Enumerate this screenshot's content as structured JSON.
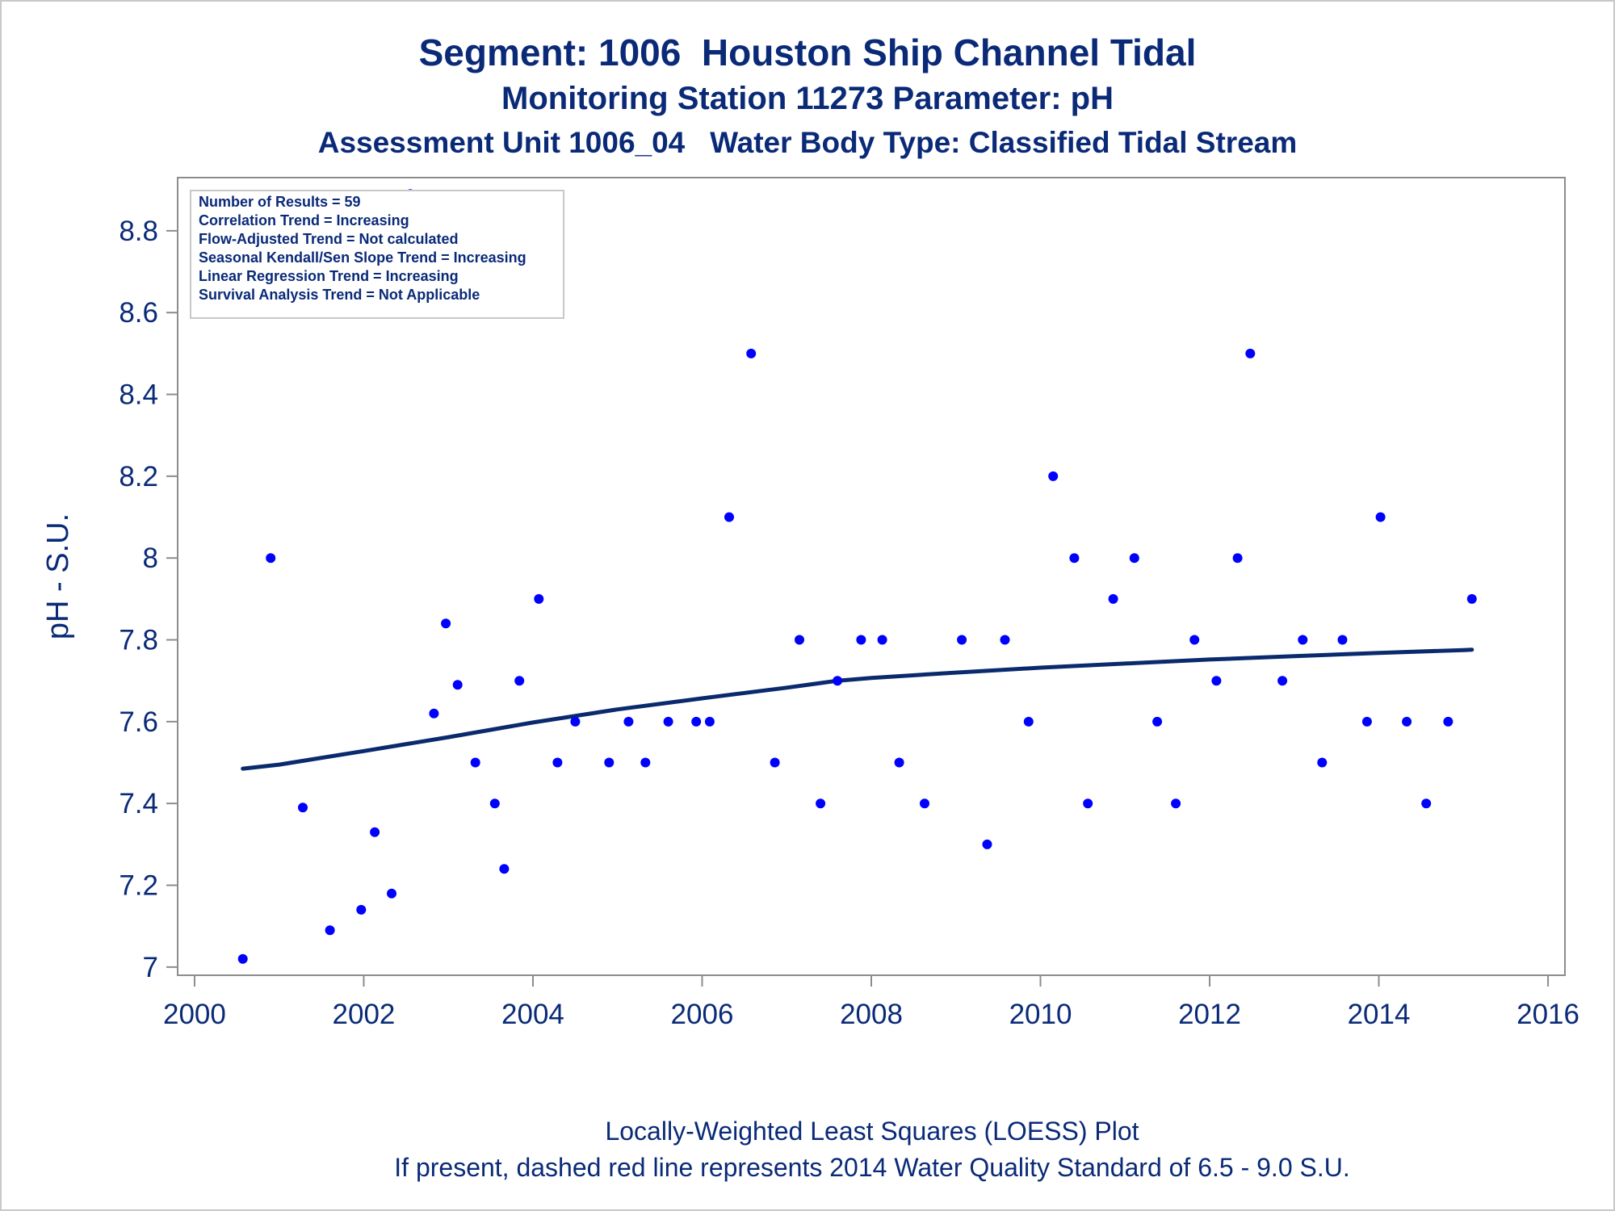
{
  "titles": {
    "line1": "Segment: 1006  Houston Ship Channel Tidal",
    "line2": "Monitoring Station 11273 Parameter: pH",
    "line3": "Assessment Unit 1006_04   Water Body Type: Classified Tidal Stream"
  },
  "footnotes": {
    "line1": "Locally-Weighted Least Squares (LOESS) Plot",
    "line2": "If present, dashed red line represents 2014 Water Quality Standard of 6.5 - 9.0 S.U."
  },
  "colors": {
    "text": "#0a2a78",
    "points": "#0000ff",
    "loess": "#0a2a6e",
    "axis": "#8c8c8c"
  },
  "chart_data": {
    "type": "scatter",
    "xlabel": "",
    "ylabel": "pH - S.U.",
    "xlim": [
      1999.8,
      2016.2
    ],
    "ylim": [
      6.98,
      8.93
    ],
    "x_ticks": [
      2000,
      2002,
      2004,
      2006,
      2008,
      2010,
      2012,
      2014,
      2016
    ],
    "y_ticks": [
      7,
      7.2,
      7.4,
      7.6,
      7.8,
      8,
      8.2,
      8.4,
      8.6,
      8.8
    ],
    "y_tick_labels": [
      "7",
      "7.2",
      "7.4",
      "7.6",
      "7.8",
      "8",
      "8.2",
      "8.4",
      "8.6",
      "8.8"
    ],
    "legend_position": "top-left",
    "legend": [
      "Number of Results = 59",
      "Correlation Trend = Increasing",
      "Flow-Adjusted Trend = Not calculated",
      "Seasonal Kendall/Sen Slope Trend = Increasing",
      "Linear Regression Trend = Increasing",
      "Survival Analysis Trend = Not Applicable"
    ],
    "series": [
      {
        "kind": "points",
        "x": [
          2000.57,
          2000.9,
          2001.28,
          2001.6,
          2001.97,
          2002.13,
          2002.33,
          2002.55,
          2002.83,
          2002.97,
          2003.11,
          2003.32,
          2003.55,
          2003.66,
          2003.84,
          2004.07,
          2004.29,
          2004.5,
          2004.9,
          2005.13,
          2005.33,
          2005.6,
          2005.93,
          2006.09,
          2006.32,
          2006.58,
          2006.86,
          2007.15,
          2007.4,
          2007.6,
          2007.88,
          2008.13,
          2008.33,
          2008.63,
          2009.07,
          2009.37,
          2009.58,
          2009.86,
          2010.15,
          2010.4,
          2010.56,
          2010.86,
          2011.11,
          2011.38,
          2011.6,
          2011.82,
          2012.08,
          2012.33,
          2012.48,
          2012.86,
          2013.1,
          2013.33,
          2013.57,
          2013.86,
          2014.02,
          2014.33,
          2014.56,
          2014.82,
          2015.1
        ],
        "y": [
          7.02,
          8.0,
          7.39,
          7.09,
          7.14,
          7.33,
          7.18,
          8.89,
          7.62,
          7.84,
          7.69,
          7.5,
          7.4,
          7.24,
          7.7,
          7.9,
          7.5,
          7.6,
          7.5,
          7.6,
          7.5,
          7.6,
          7.6,
          7.6,
          8.1,
          8.5,
          7.5,
          7.8,
          7.4,
          7.7,
          7.8,
          7.8,
          7.5,
          7.4,
          7.8,
          7.3,
          7.8,
          7.6,
          8.2,
          8.0,
          7.4,
          7.9,
          8.0,
          7.6,
          7.4,
          7.8,
          7.7,
          8.0,
          8.5,
          7.7,
          7.8,
          7.5,
          7.8,
          7.6,
          8.1,
          7.6,
          7.4,
          7.6,
          7.9
        ]
      },
      {
        "kind": "loess",
        "x": [
          2000.57,
          2001.0,
          2002.0,
          2003.0,
          2004.0,
          2005.0,
          2006.0,
          2007.0,
          2007.6,
          2008.0,
          2009.0,
          2010.0,
          2011.0,
          2012.0,
          2013.0,
          2014.0,
          2015.0,
          2015.1
        ],
        "y": [
          7.485,
          7.495,
          7.528,
          7.562,
          7.598,
          7.63,
          7.657,
          7.683,
          7.7,
          7.707,
          7.72,
          7.732,
          7.742,
          7.752,
          7.76,
          7.768,
          7.775,
          7.776
        ]
      }
    ]
  }
}
